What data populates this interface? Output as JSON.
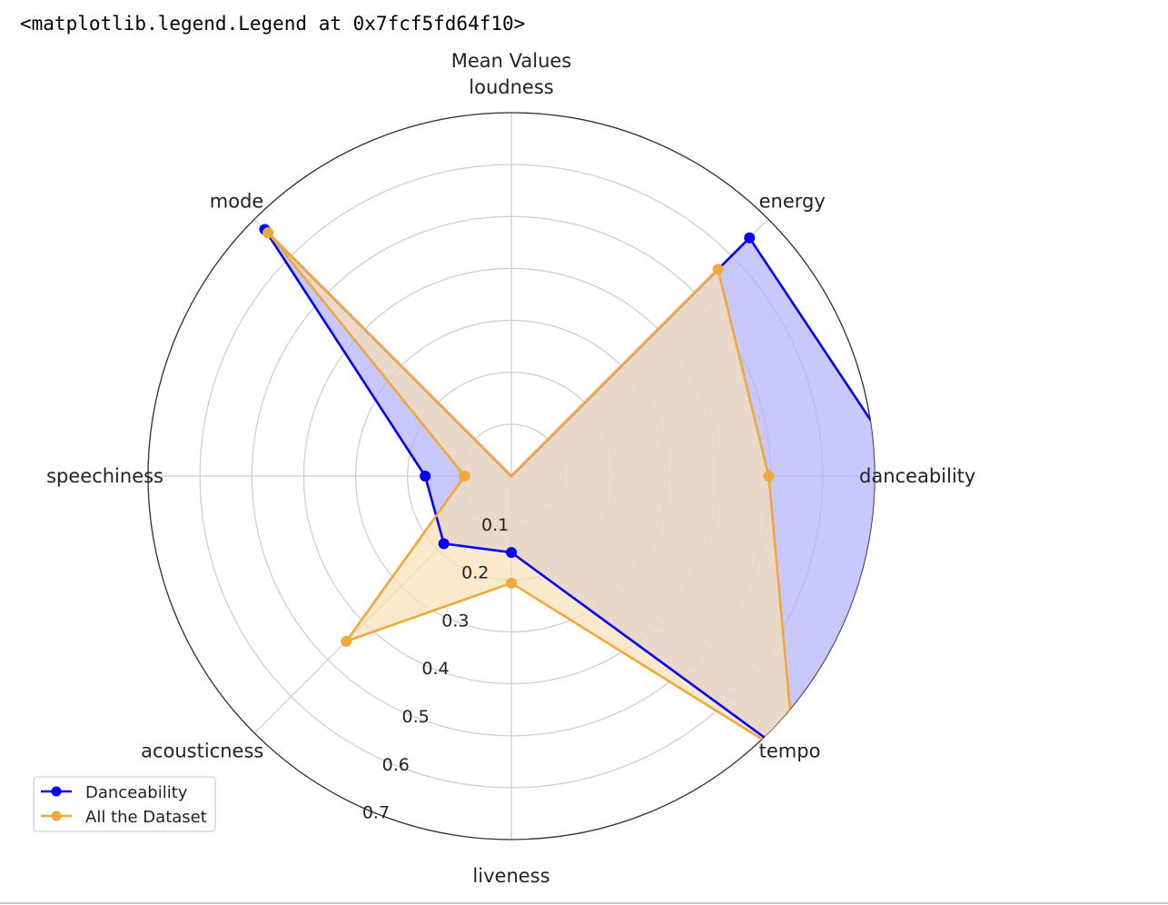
{
  "output_repr": "<matplotlib.legend.Legend at 0x7fcf5fd64f10>",
  "chart_data": {
    "type": "radar",
    "title": "Mean Values",
    "categories": [
      "danceability",
      "energy",
      "loudness",
      "mode",
      "speechiness",
      "acousticness",
      "liveness",
      "tempo"
    ],
    "radial_ticks": [
      "0.1",
      "0.2",
      "0.3",
      "0.4",
      "0.5",
      "0.6",
      "0.7"
    ],
    "rlim": [
      0,
      0.7
    ],
    "grid": true,
    "legend_position": "lower-left",
    "series": [
      {
        "name": "Danceability",
        "color": "#0000ff",
        "fill": "#b0b0ff",
        "values": [
          0.764,
          0.649,
          0.0,
          0.672,
          0.166,
          0.184,
          0.147,
          0.772
        ]
      },
      {
        "name": "All the Dataset",
        "color": "#f0a83a",
        "fill": "#f8dfb3",
        "values": [
          0.496,
          0.563,
          0.0,
          0.663,
          0.09,
          0.45,
          0.206,
          0.772
        ]
      }
    ]
  }
}
